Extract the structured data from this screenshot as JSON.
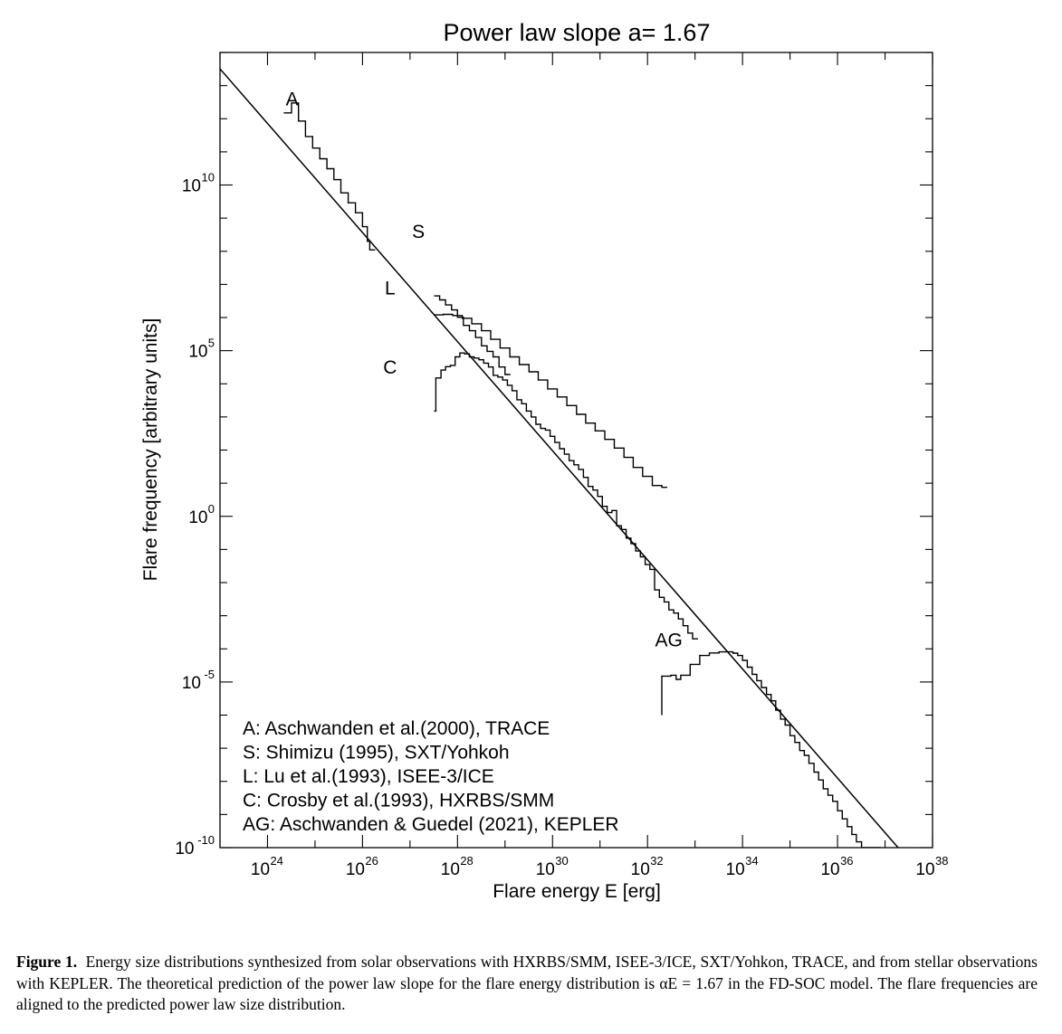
{
  "chart_data": {
    "type": "line",
    "title": "Power law slope  a= 1.67",
    "xlabel": "Flare energy E [erg]",
    "ylabel": "Flare frequency [arbitrary units]",
    "x_scale": "log",
    "y_scale": "log",
    "xlim": [
      1e+23,
      1e+38
    ],
    "ylim": [
      1e-10,
      100000000000000.0
    ],
    "x_ticks": [
      {
        "base": "10",
        "exp": "24",
        "value": 1e+24
      },
      {
        "base": "10",
        "exp": "26",
        "value": 1e+26
      },
      {
        "base": "10",
        "exp": "28",
        "value": 1e+28
      },
      {
        "base": "10",
        "exp": "30",
        "value": 1e+30
      },
      {
        "base": "10",
        "exp": "32",
        "value": 1e+32
      },
      {
        "base": "10",
        "exp": "34",
        "value": 1e+34
      },
      {
        "base": "10",
        "exp": "36",
        "value": 1e+36
      },
      {
        "base": "10",
        "exp": "38",
        "value": 1e+38
      }
    ],
    "y_ticks": [
      {
        "base": "10",
        "exp": "10",
        "value": 10000000000.0
      },
      {
        "base": "10",
        "exp": "5",
        "value": 100000.0
      },
      {
        "base": "10",
        "exp": "0",
        "value": 1
      },
      {
        "base": "10",
        "exp": "-5",
        "value": 1e-05
      },
      {
        "base": "10",
        "exp": "-10",
        "value": 1e-10
      }
    ],
    "power_law": {
      "slope": -1.67,
      "x": [
        1e+23,
        1e+38
      ],
      "y": [
        32000000000000.0,
        6.4e-12
      ]
    },
    "series": [
      {
        "label": "A",
        "legend": "A: Aschwanden et al.(2000), TRACE",
        "step": true,
        "x": [
          2.2e+24,
          3.2e+24,
          4.5e+24,
          6.3e+24,
          8.9e+24,
          1.26e+25,
          1.78e+25,
          2.5e+25,
          3.5e+25,
          5e+25,
          7.1e+25,
          1e+26,
          1.26e+26,
          1.42e+26
        ],
        "y": [
          1500000000000.0,
          3000000000000.0,
          850000000000.0,
          290000000000.0,
          130000000000.0,
          62000000000.0,
          31000000000.0,
          14500000000.0,
          5800000000.0,
          2900000000.0,
          1450000000.0,
          550000000.0,
          200000000.0,
          110000000.0
        ]
      },
      {
        "label": "S",
        "legend": "S: Shimizu (1995), SXT/Yohkoh",
        "step": true,
        "x": [
          3.2e+27,
          4.2e+27,
          5.6e+27,
          7.5e+27,
          1e+28,
          1.33e+28,
          1.78e+28,
          2.4e+28,
          3.2e+28,
          4.2e+28,
          5.6e+28,
          7.5e+28,
          1e+29
        ],
        "y": [
          4500000.0,
          3400000.0,
          2400000.0,
          1700000.0,
          1020000.0,
          580000.0,
          400000.0,
          250000.0,
          140000.0,
          95000.0,
          65000.0,
          32000.0,
          19000.0
        ]
      },
      {
        "label": "L",
        "legend": "L: Lu et al.(1993), ISEE-3/ICE",
        "step": true,
        "x": [
          3.2e+27,
          5e+27,
          7.9e+27,
          1.26e+28,
          2e+28,
          3.2e+28,
          5e+28,
          7.9e+28,
          1.26e+29,
          2e+29,
          3.2e+29,
          5e+29,
          7.9e+29,
          1.26e+30,
          2e+30,
          3.2e+30,
          5e+30,
          7.9e+30,
          1.26e+31,
          2e+31,
          3.2e+31,
          5e+31,
          7.9e+31,
          1.26e+32,
          2e+32
        ],
        "y": [
          1200000.0,
          1250000.0,
          1150000.0,
          950000.0,
          650000.0,
          400000.0,
          220000.0,
          120000.0,
          65000.0,
          38000.0,
          23000.0,
          13000.0,
          7000.0,
          4000.0,
          2200.0,
          1200.0,
          650,
          380,
          210,
          115,
          60,
          30,
          16,
          8.5,
          7.5
        ]
      },
      {
        "label": "C",
        "legend": "C: Crosby et al.(1993), HXRBS/SMM",
        "step": true,
        "x": [
          3.2e+27,
          3.5e+27,
          4.5e+27,
          5.6e+27,
          7.1e+27,
          8.9e+27,
          1.12e+28,
          1.41e+28,
          1.78e+28,
          2.24e+28,
          2.82e+28,
          3.55e+28,
          4.47e+28,
          5.62e+28,
          7.08e+28,
          8.91e+28,
          1.12e+29,
          1.41e+29,
          1.78e+29,
          2.24e+29,
          2.82e+29,
          3.55e+29,
          4.47e+29,
          5.62e+29,
          7.08e+29,
          8.91e+29,
          1.12e+30,
          1.41e+30,
          1.78e+30,
          2.24e+30,
          2.82e+30,
          3.55e+30,
          4.47e+30,
          5.62e+30,
          7.08e+30,
          8.91e+30,
          1.12e+31,
          1.41e+31,
          1.78e+31,
          2.24e+31,
          2.82e+31,
          3.55e+31,
          4.47e+31,
          5.62e+31,
          7.08e+31,
          8.91e+31,
          1.12e+32,
          1.41e+32,
          1.78e+32,
          2.24e+32,
          2.82e+32,
          3.55e+32,
          4.47e+32,
          5.62e+32,
          7.08e+32,
          8.91e+32
        ],
        "y": [
          1500.0,
          15000.0,
          26000.0,
          33000.0,
          36000.0,
          65000.0,
          85000.0,
          80000.0,
          65000.0,
          60000.0,
          53000.0,
          42000.0,
          32000.0,
          18000.0,
          16000.0,
          13000.0,
          9000.0,
          6200.0,
          3300.0,
          2500.0,
          1500.0,
          1000.0,
          600,
          450,
          400,
          260,
          170,
          110,
          75,
          48,
          36,
          26,
          15,
          8.0,
          6.2,
          4.0,
          2.0,
          1.3,
          1.5,
          0.52,
          0.4,
          0.22,
          0.15,
          0.09,
          0.06,
          0.035,
          0.025,
          0.006,
          0.0036,
          0.0026,
          0.0015,
          0.0012,
          0.0008,
          0.0005,
          0.0003,
          0.0002
        ]
      },
      {
        "label": "AG",
        "legend": "AG: Aschwanden & Guedel (2021), KEPLER",
        "step": true,
        "x": [
          2e+32,
          2e+32,
          2.5e+32,
          3.1e+32,
          4e+32,
          5e+32,
          6.3e+32,
          7.9e+32,
          1e+33,
          1.26e+33,
          1.6e+33,
          2e+33,
          2.5e+33,
          3.2e+33,
          4e+33,
          5e+33,
          6.3e+33,
          7.9e+33,
          1e+34,
          1.26e+34,
          1.6e+34,
          2e+34,
          2.5e+34,
          3.2e+34,
          4e+34,
          5e+34,
          6.3e+34,
          7.9e+34,
          1e+35,
          1.26e+35,
          1.6e+35,
          2e+35,
          2.5e+35,
          3.2e+35,
          4e+35,
          5e+35,
          6.3e+35,
          7.9e+35,
          1e+36,
          1.26e+36,
          1.6e+36,
          2e+36,
          2.5e+36,
          3.2e+36,
          4e+36,
          5e+36,
          6.3e+36
        ],
        "y": [
          1e-06,
          1.5e-05,
          1.5e-05,
          1.6e-05,
          1.2e-05,
          1.6e-05,
          1.6e-05,
          3.4e-05,
          3.4e-05,
          6.3e-05,
          6.3e-05,
          7.5e-05,
          7.5e-05,
          8.1e-05,
          8.1e-05,
          8.1e-05,
          7.4e-05,
          6.3e-05,
          4.5e-05,
          2.8e-05,
          1.7e-05,
          1.1e-05,
          6.8e-06,
          4.2e-06,
          2.7e-06,
          1.4e-06,
          7.6e-07,
          5e-07,
          2.4e-07,
          1.5e-07,
          8.5e-08,
          6.1e-08,
          3.5e-08,
          1.9e-08,
          1.1e-08,
          6e-09,
          3.8e-09,
          2.5e-09,
          1.3e-09,
          7.4e-10,
          4.3e-10,
          2.5e-10,
          1.5e-10,
          1e-10,
          6.4e-11,
          3.6e-11,
          2.5e-11
        ]
      }
    ],
    "legend_position": "bottom-left",
    "grid": false
  },
  "series_label_positions": [
    {
      "label": "A",
      "x": 3.3e+24,
      "y": 2500000000000.0
    },
    {
      "label": "S",
      "x": 1.5e+27,
      "y": 250000000.0
    },
    {
      "label": "L",
      "x": 3.8e+26,
      "y": 5000000.0
    },
    {
      "label": "C",
      "x": 3.8e+26,
      "y": 20000.0
    },
    {
      "label": "AG",
      "x": 2.8e+32,
      "y": 0.00012
    }
  ],
  "caption": {
    "label": "Figure 1.",
    "text": "Energy size distributions synthesized from solar observations with HXRBS/SMM, ISEE-3/ICE, SXT/Yohkon, TRACE, and from stellar observations with KEPLER. The theoretical prediction of the power law slope for the flare energy distribution is αE = 1.67 in the FD-SOC model. The flare frequencies are aligned to the predicted power law size distribution."
  }
}
